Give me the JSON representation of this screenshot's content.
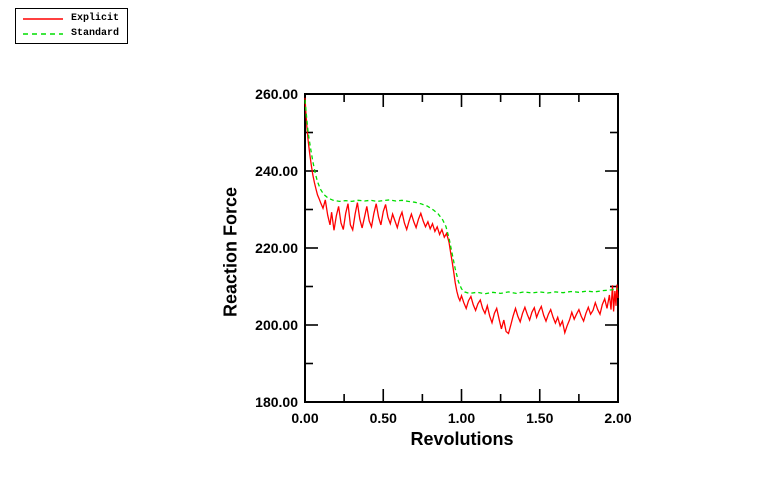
{
  "legend": {
    "entries": [
      {
        "label": "Explicit",
        "color": "#ff0000",
        "style": "solid"
      },
      {
        "label": "Standard",
        "color": "#00dd00",
        "style": "dashed"
      }
    ]
  },
  "chart_data": {
    "type": "line",
    "title": "",
    "xlabel": "Revolutions",
    "ylabel": "Reaction Force",
    "xlim": [
      0,
      2
    ],
    "ylim": [
      180,
      260
    ],
    "grid": false,
    "legend_position": "top-left-outside",
    "x_major_ticks": [
      0,
      0.5,
      1,
      1.5,
      2
    ],
    "x_major_tick_labels": [
      "0.00",
      "0.50",
      "1.00",
      "1.50",
      "2.00"
    ],
    "x_minor_ticks": [
      0.25,
      0.75,
      1.25,
      1.75
    ],
    "y_major_ticks": [
      180,
      200,
      220,
      240,
      260
    ],
    "y_major_tick_labels": [
      "180.00",
      "200.00",
      "220.00",
      "240.00",
      "260.00"
    ],
    "y_minor_ticks": [
      190,
      210,
      230,
      250
    ],
    "series": [
      {
        "name": "Explicit",
        "color": "#ff0000",
        "dash": null,
        "points": [
          [
            0.0,
            259.0
          ],
          [
            0.005,
            255.5
          ],
          [
            0.012,
            251.5
          ],
          [
            0.02,
            248.0
          ],
          [
            0.03,
            244.5
          ],
          [
            0.04,
            241.5
          ],
          [
            0.05,
            239.0
          ],
          [
            0.06,
            237.0
          ],
          [
            0.07,
            235.3
          ],
          [
            0.08,
            233.8
          ],
          [
            0.09,
            232.8
          ],
          [
            0.1,
            231.8
          ],
          [
            0.115,
            230.3
          ],
          [
            0.13,
            232.5
          ],
          [
            0.145,
            228.5
          ],
          [
            0.16,
            226.0
          ],
          [
            0.17,
            229.3
          ],
          [
            0.185,
            224.6
          ],
          [
            0.2,
            228.3
          ],
          [
            0.215,
            230.8
          ],
          [
            0.23,
            226.5
          ],
          [
            0.245,
            224.8
          ],
          [
            0.26,
            229.0
          ],
          [
            0.275,
            231.5
          ],
          [
            0.29,
            226.0
          ],
          [
            0.305,
            224.7
          ],
          [
            0.32,
            228.8
          ],
          [
            0.335,
            231.8
          ],
          [
            0.35,
            227.5
          ],
          [
            0.365,
            225.2
          ],
          [
            0.38,
            228.0
          ],
          [
            0.395,
            230.8
          ],
          [
            0.41,
            227.0
          ],
          [
            0.425,
            225.5
          ],
          [
            0.44,
            229.0
          ],
          [
            0.455,
            231.5
          ],
          [
            0.47,
            228.0
          ],
          [
            0.485,
            226.0
          ],
          [
            0.5,
            229.5
          ],
          [
            0.515,
            231.3
          ],
          [
            0.53,
            228.0
          ],
          [
            0.545,
            226.3
          ],
          [
            0.56,
            228.8
          ],
          [
            0.575,
            227.0
          ],
          [
            0.59,
            225.3
          ],
          [
            0.605,
            227.8
          ],
          [
            0.62,
            229.3
          ],
          [
            0.635,
            226.5
          ],
          [
            0.65,
            224.8
          ],
          [
            0.665,
            227.0
          ],
          [
            0.68,
            228.8
          ],
          [
            0.695,
            226.8
          ],
          [
            0.71,
            225.3
          ],
          [
            0.725,
            227.5
          ],
          [
            0.74,
            229.0
          ],
          [
            0.755,
            227.0
          ],
          [
            0.77,
            225.5
          ],
          [
            0.785,
            226.8
          ],
          [
            0.8,
            225.0
          ],
          [
            0.815,
            226.3
          ],
          [
            0.83,
            224.3
          ],
          [
            0.845,
            225.5
          ],
          [
            0.86,
            223.5
          ],
          [
            0.875,
            224.8
          ],
          [
            0.89,
            222.8
          ],
          [
            0.905,
            223.8
          ],
          [
            0.92,
            221.5
          ],
          [
            0.93,
            219.0
          ],
          [
            0.94,
            216.5
          ],
          [
            0.95,
            213.8
          ],
          [
            0.96,
            211.0
          ],
          [
            0.97,
            208.8
          ],
          [
            0.98,
            207.2
          ],
          [
            0.99,
            206.3
          ],
          [
            1.0,
            207.6
          ],
          [
            1.015,
            205.8
          ],
          [
            1.03,
            204.3
          ],
          [
            1.045,
            206.3
          ],
          [
            1.06,
            207.4
          ],
          [
            1.075,
            205.3
          ],
          [
            1.09,
            203.8
          ],
          [
            1.105,
            205.5
          ],
          [
            1.12,
            206.5
          ],
          [
            1.135,
            204.3
          ],
          [
            1.15,
            203.0
          ],
          [
            1.165,
            205.0
          ],
          [
            1.18,
            202.3
          ],
          [
            1.195,
            200.6
          ],
          [
            1.21,
            203.0
          ],
          [
            1.225,
            204.3
          ],
          [
            1.24,
            201.5
          ],
          [
            1.255,
            199.0
          ],
          [
            1.27,
            201.3
          ],
          [
            1.285,
            198.3
          ],
          [
            1.3,
            197.8
          ],
          [
            1.315,
            200.0
          ],
          [
            1.33,
            202.3
          ],
          [
            1.345,
            204.3
          ],
          [
            1.36,
            202.3
          ],
          [
            1.375,
            200.8
          ],
          [
            1.39,
            203.0
          ],
          [
            1.405,
            204.6
          ],
          [
            1.42,
            202.8
          ],
          [
            1.435,
            201.3
          ],
          [
            1.45,
            203.3
          ],
          [
            1.465,
            204.5
          ],
          [
            1.48,
            202.0
          ],
          [
            1.495,
            203.6
          ],
          [
            1.51,
            204.8
          ],
          [
            1.525,
            202.5
          ],
          [
            1.54,
            201.0
          ],
          [
            1.555,
            202.8
          ],
          [
            1.57,
            204.0
          ],
          [
            1.585,
            202.0
          ],
          [
            1.6,
            200.5
          ],
          [
            1.615,
            202.0
          ],
          [
            1.63,
            199.8
          ],
          [
            1.645,
            201.0
          ],
          [
            1.66,
            198.0
          ],
          [
            1.675,
            199.8
          ],
          [
            1.69,
            201.3
          ],
          [
            1.705,
            203.3
          ],
          [
            1.72,
            201.5
          ],
          [
            1.735,
            202.8
          ],
          [
            1.75,
            204.0
          ],
          [
            1.765,
            202.3
          ],
          [
            1.78,
            201.0
          ],
          [
            1.795,
            203.0
          ],
          [
            1.81,
            204.6
          ],
          [
            1.825,
            202.8
          ],
          [
            1.84,
            203.8
          ],
          [
            1.855,
            205.8
          ],
          [
            1.87,
            204.0
          ],
          [
            1.885,
            202.8
          ],
          [
            1.9,
            205.3
          ],
          [
            1.915,
            206.8
          ],
          [
            1.93,
            204.3
          ],
          [
            1.945,
            207.8
          ],
          [
            1.955,
            204.0
          ],
          [
            1.965,
            210.3
          ],
          [
            1.972,
            203.5
          ],
          [
            1.98,
            208.8
          ],
          [
            1.987,
            205.0
          ],
          [
            1.993,
            210.5
          ],
          [
            2.0,
            207.0
          ]
        ]
      },
      {
        "name": "Standard",
        "color": "#00dd00",
        "dash": [
          4,
          3
        ],
        "points": [
          [
            0.0,
            258.5
          ],
          [
            0.01,
            254.0
          ],
          [
            0.02,
            250.0
          ],
          [
            0.035,
            246.0
          ],
          [
            0.05,
            242.5
          ],
          [
            0.065,
            239.5
          ],
          [
            0.08,
            237.2
          ],
          [
            0.1,
            235.2
          ],
          [
            0.12,
            233.9
          ],
          [
            0.15,
            232.9
          ],
          [
            0.18,
            232.4
          ],
          [
            0.22,
            232.1
          ],
          [
            0.26,
            232.3
          ],
          [
            0.3,
            232.1
          ],
          [
            0.34,
            232.4
          ],
          [
            0.38,
            232.2
          ],
          [
            0.42,
            232.4
          ],
          [
            0.46,
            232.1
          ],
          [
            0.5,
            232.3
          ],
          [
            0.54,
            232.5
          ],
          [
            0.58,
            232.2
          ],
          [
            0.62,
            232.4
          ],
          [
            0.66,
            232.1
          ],
          [
            0.7,
            231.9
          ],
          [
            0.74,
            231.5
          ],
          [
            0.78,
            230.9
          ],
          [
            0.82,
            229.9
          ],
          [
            0.85,
            228.9
          ],
          [
            0.88,
            227.3
          ],
          [
            0.9,
            225.6
          ],
          [
            0.92,
            222.6
          ],
          [
            0.94,
            218.6
          ],
          [
            0.96,
            214.6
          ],
          [
            0.98,
            211.3
          ],
          [
            1.0,
            209.4
          ],
          [
            1.02,
            208.6
          ],
          [
            1.05,
            208.2
          ],
          [
            1.1,
            208.5
          ],
          [
            1.15,
            208.1
          ],
          [
            1.2,
            208.5
          ],
          [
            1.25,
            208.2
          ],
          [
            1.3,
            208.6
          ],
          [
            1.35,
            208.2
          ],
          [
            1.4,
            208.6
          ],
          [
            1.45,
            208.3
          ],
          [
            1.5,
            208.6
          ],
          [
            1.55,
            208.3
          ],
          [
            1.6,
            208.6
          ],
          [
            1.65,
            208.4
          ],
          [
            1.7,
            208.7
          ],
          [
            1.75,
            208.5
          ],
          [
            1.8,
            208.8
          ],
          [
            1.85,
            208.6
          ],
          [
            1.9,
            208.9
          ],
          [
            1.95,
            209.1
          ],
          [
            2.0,
            209.4
          ]
        ]
      }
    ]
  }
}
